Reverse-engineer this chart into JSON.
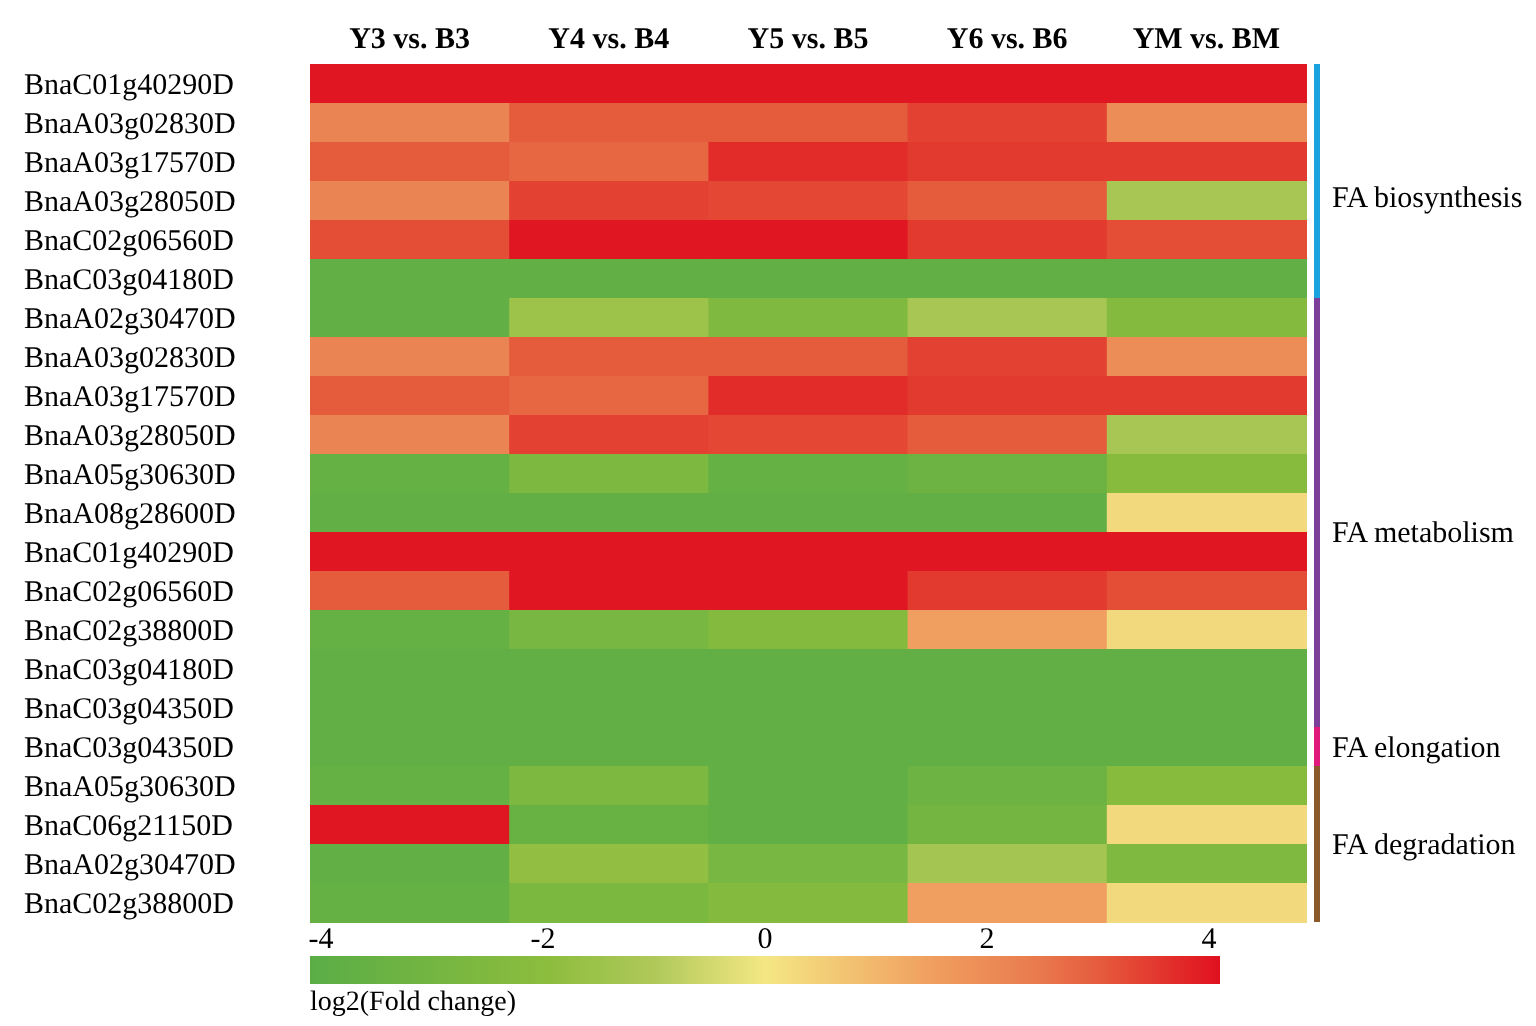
{
  "chart_data": {
    "type": "heatmap",
    "categories": [
      "Y3 vs. B3",
      "Y4 vs. B4",
      "Y5 vs. B5",
      "Y6 vs. B6",
      "YM vs. BM"
    ],
    "y_categories": [
      "BnaC01g40290D",
      "BnaA03g02830D",
      "BnaA03g17570D",
      "BnaA03g28050D",
      "BnaC02g06560D",
      "BnaC03g04180D",
      "BnaA02g30470D",
      "BnaA03g02830D",
      "BnaA03g17570D",
      "BnaA03g28050D",
      "BnaA05g30630D",
      "BnaA08g28600D",
      "BnaC01g40290D",
      "BnaC02g06560D",
      "BnaC02g38800D",
      "BnaC03g04180D",
      "BnaC03g04350D",
      "BnaC03g04350D",
      "BnaA05g30630D",
      "BnaC06g21150D",
      "BnaA02g30470D",
      "BnaC02g38800D"
    ],
    "cells": [
      [
        4,
        4,
        4,
        4,
        4
      ],
      [
        2.2,
        3.0,
        3.0,
        3.4,
        2.0
      ],
      [
        3.0,
        2.8,
        3.7,
        3.5,
        3.5
      ],
      [
        2.2,
        3.4,
        3.3,
        3.0,
        -1.2
      ],
      [
        3.2,
        4,
        4,
        3.5,
        3.2
      ],
      [
        -3.8,
        -3.8,
        -3.8,
        -3.8,
        -3.8
      ],
      [
        -3.8,
        -1.5,
        -2.5,
        -1.2,
        -2.3
      ],
      [
        2.2,
        3.0,
        3.0,
        3.4,
        2.0
      ],
      [
        3.0,
        2.8,
        3.7,
        3.5,
        3.5
      ],
      [
        2.2,
        3.4,
        3.3,
        3.0,
        -1.2
      ],
      [
        -3.6,
        -2.6,
        -3.6,
        -3.3,
        -2.2
      ],
      [
        -3.8,
        -3.8,
        -3.8,
        -3.8,
        0.3
      ],
      [
        4,
        4,
        4,
        4,
        4
      ],
      [
        3.0,
        4,
        4,
        3.5,
        3.2
      ],
      [
        -3.6,
        -2.8,
        -2.3,
        1.5,
        0.3
      ],
      [
        -3.8,
        -3.8,
        -3.8,
        -3.8,
        -3.8
      ],
      [
        -3.8,
        -3.8,
        -3.8,
        -3.8,
        -3.8
      ],
      [
        -3.8,
        -3.8,
        -3.8,
        -3.8,
        -3.8
      ],
      [
        -3.6,
        -2.6,
        -3.8,
        -3.3,
        -2.2
      ],
      [
        4,
        -3.5,
        -3.8,
        -3.0,
        0.3
      ],
      [
        -3.8,
        -1.8,
        -2.8,
        -1.3,
        -2.5
      ],
      [
        -3.6,
        -2.7,
        -2.3,
        1.5,
        0.3
      ]
    ],
    "clim": [
      -4.1,
      4.1
    ],
    "cticks": [
      -4,
      -2,
      0,
      2,
      4
    ],
    "clabel": "log2(Fold change)",
    "annotations": [
      "FA biosynthesis",
      "FA metabolism",
      "FA elongation",
      "FA degradation"
    ]
  }
}
